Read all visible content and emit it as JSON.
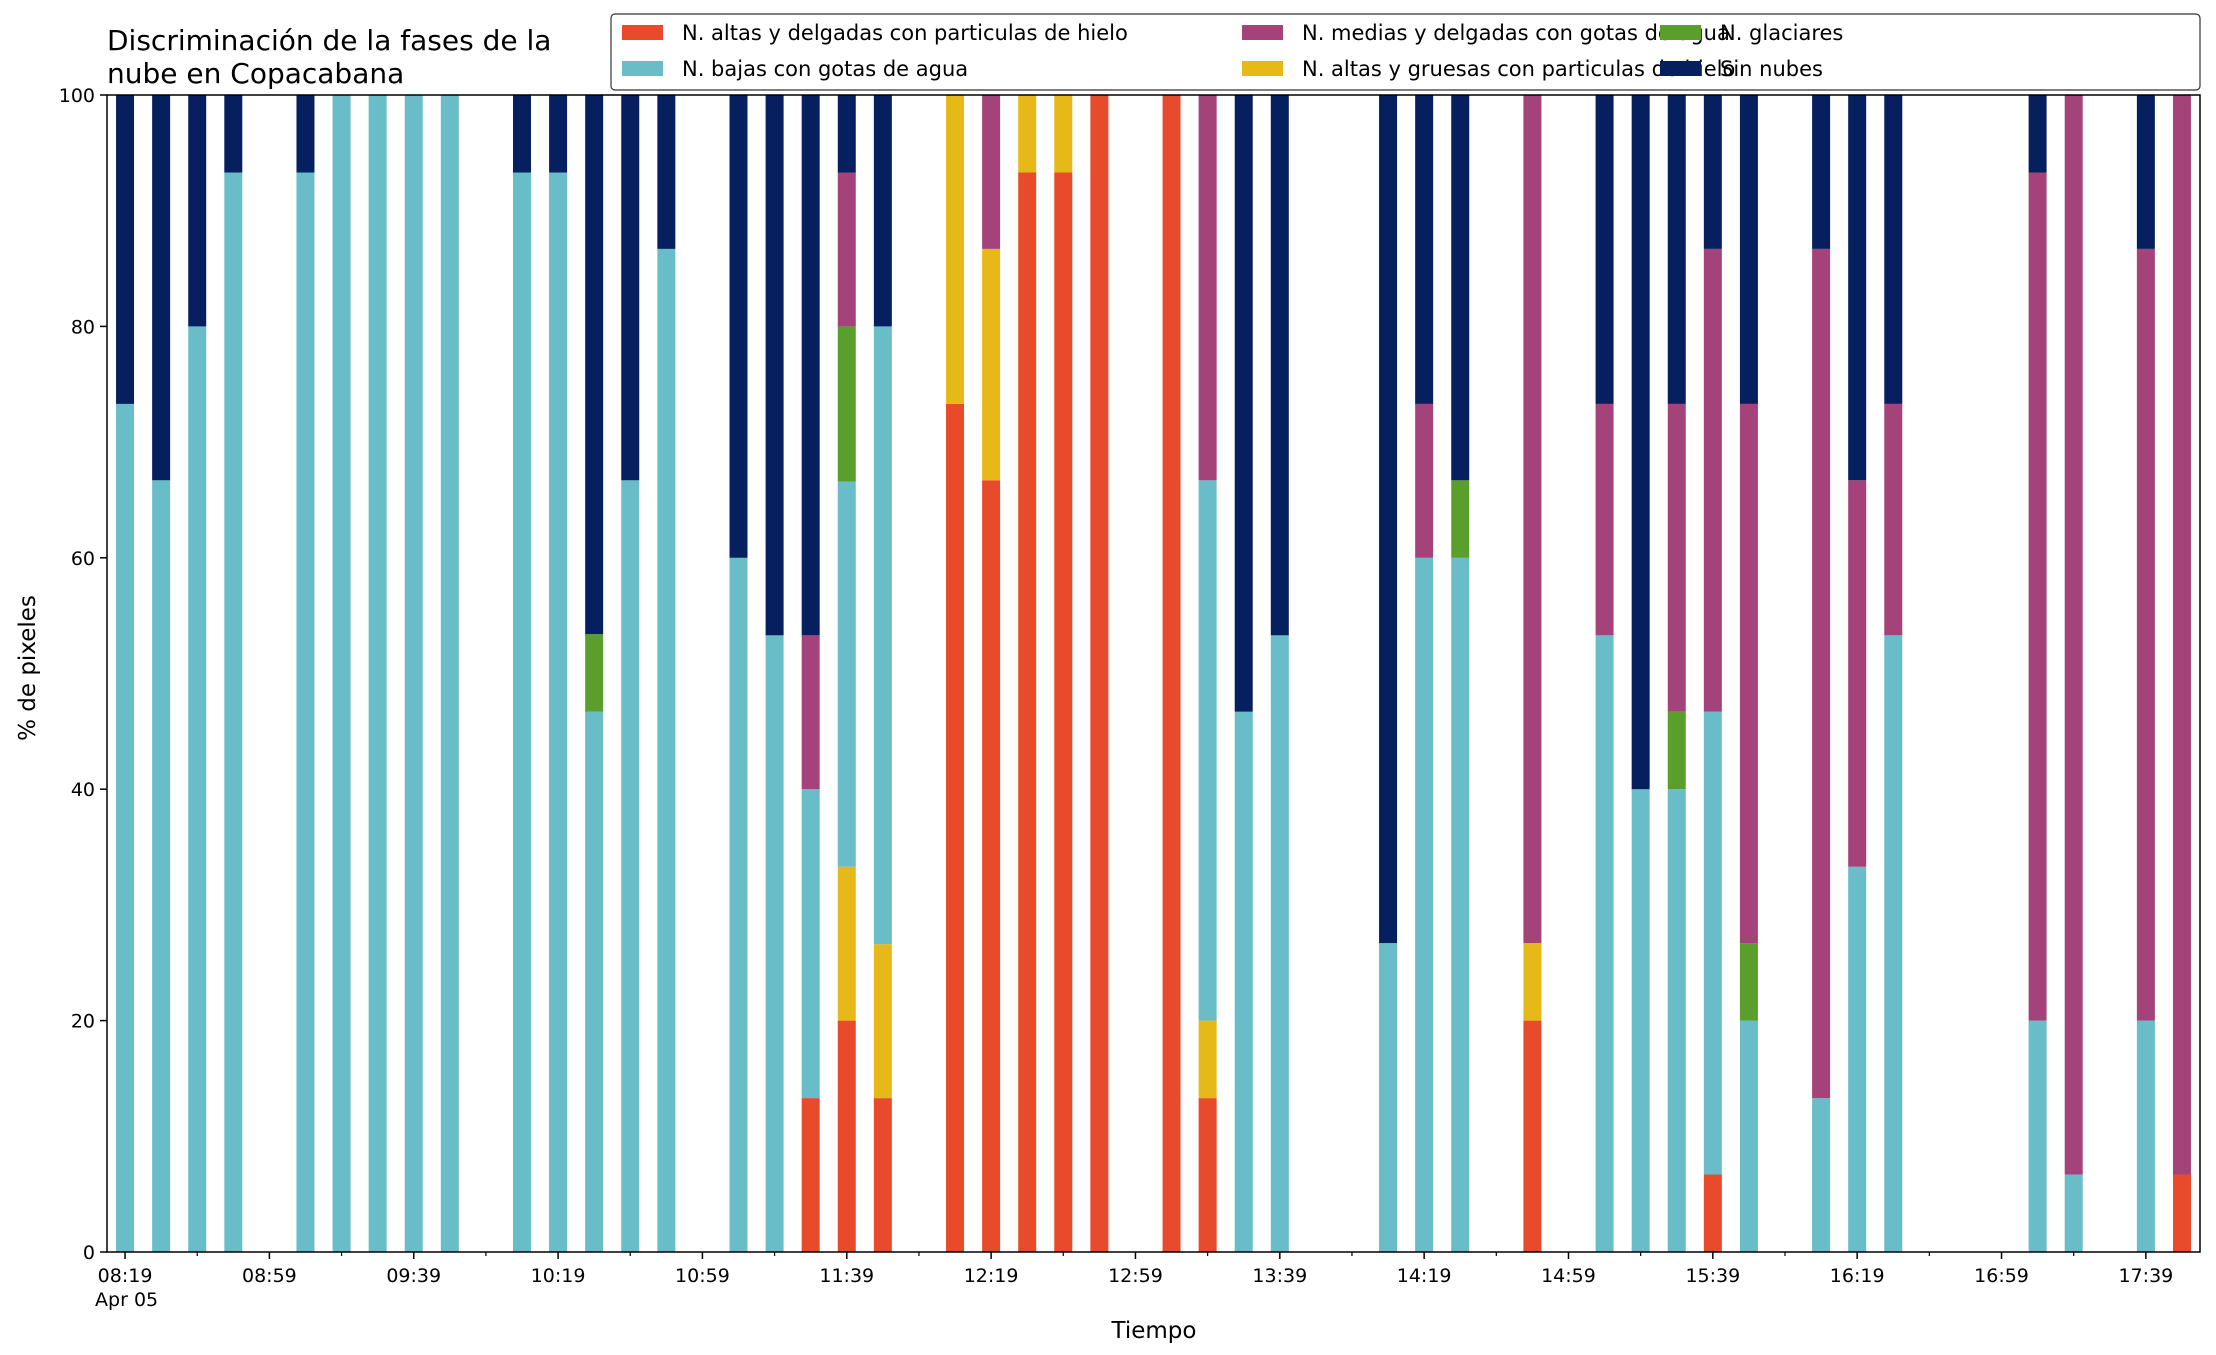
{
  "chart_data": {
    "type": "bar",
    "stacked": true,
    "title_lines": [
      "Discriminación de la fases de la",
      "nube en Copacabana"
    ],
    "xlabel": "Tiempo",
    "ylabel": "% de pixeles",
    "ylim": [
      0,
      100
    ],
    "yticks": [
      0,
      20,
      40,
      60,
      80,
      100
    ],
    "xlim": [
      "08:14",
      "17:54"
    ],
    "x_tick_labels": [
      "08:19",
      "08:59",
      "09:39",
      "10:19",
      "10:59",
      "11:39",
      "12:19",
      "12:59",
      "13:39",
      "14:19",
      "14:59",
      "15:39",
      "16:19",
      "16:59",
      "17:39"
    ],
    "x_date_label": "Apr 05",
    "x_minor_tick_step_minutes": 20,
    "legend_position": "top-right",
    "legend_columns": 3,
    "series": [
      {
        "name": "N. altas y delgadas con particulas de hielo",
        "color": "#e84b2c"
      },
      {
        "name": "N. altas y gruesas con particulas de hielo",
        "color": "#e6b818"
      },
      {
        "name": "N. bajas con gotas de agua",
        "color": "#68bdc9"
      },
      {
        "name": "N. glaciares",
        "color": "#5a9e2c"
      },
      {
        "name": "N. medias y delgadas con gotas de agua",
        "color": "#a4427a"
      },
      {
        "name": "Sin nubes",
        "color": "#06205f"
      }
    ],
    "legend_order": [
      0,
      2,
      4,
      1,
      3,
      5
    ],
    "x": [
      "08:19",
      "08:29",
      "08:39",
      "08:49",
      "09:09",
      "09:19",
      "09:29",
      "09:39",
      "09:49",
      "10:09",
      "10:19",
      "10:29",
      "10:39",
      "10:49",
      "11:09",
      "11:19",
      "11:29",
      "11:39",
      "11:49",
      "12:09",
      "12:19",
      "12:29",
      "12:39",
      "12:49",
      "13:09",
      "13:19",
      "13:29",
      "13:39",
      "14:09",
      "14:19",
      "14:29",
      "14:49",
      "15:09",
      "15:19",
      "15:29",
      "15:39",
      "15:49",
      "16:09",
      "16:19",
      "16:29",
      "17:09",
      "17:19",
      "17:39",
      "17:49"
    ],
    "values": [
      [
        0,
        0,
        73.3,
        0,
        0,
        26.7
      ],
      [
        0,
        0,
        66.7,
        0,
        0,
        33.3
      ],
      [
        0,
        0,
        80,
        0,
        0,
        20
      ],
      [
        0,
        0,
        93.3,
        0,
        0,
        6.7
      ],
      [
        0,
        0,
        93.3,
        0,
        0,
        6.7
      ],
      [
        0,
        0,
        100,
        0,
        0,
        0
      ],
      [
        0,
        0,
        100,
        0,
        0,
        0
      ],
      [
        0,
        0,
        100,
        0,
        0,
        0
      ],
      [
        0,
        0,
        100,
        0,
        0,
        0
      ],
      [
        0,
        0,
        93.3,
        0,
        0,
        6.7
      ],
      [
        0,
        0,
        93.3,
        0,
        0,
        6.7
      ],
      [
        0,
        0,
        46.7,
        6.7,
        0,
        46.6
      ],
      [
        0,
        0,
        66.7,
        0,
        0,
        33.3
      ],
      [
        0,
        0,
        86.7,
        0,
        0,
        13.3
      ],
      [
        0,
        0,
        60,
        0,
        0,
        40
      ],
      [
        0,
        0,
        53.3,
        0,
        0,
        46.7
      ],
      [
        13.3,
        0,
        26.7,
        0,
        13.3,
        46.7
      ],
      [
        20,
        13.3,
        33.3,
        13.4,
        13.3,
        6.7
      ],
      [
        13.3,
        13.3,
        53.4,
        0,
        0,
        20
      ],
      [
        73.3,
        26.7,
        0,
        0,
        0,
        0
      ],
      [
        66.7,
        20,
        0,
        0,
        13.3,
        0
      ],
      [
        93.3,
        6.7,
        0,
        0,
        0,
        0
      ],
      [
        93.3,
        6.7,
        0,
        0,
        0,
        0
      ],
      [
        100,
        0,
        0,
        0,
        0,
        0
      ],
      [
        100,
        0,
        0,
        0,
        0,
        0
      ],
      [
        13.3,
        6.7,
        46.7,
        0,
        33.3,
        0
      ],
      [
        0,
        0,
        46.7,
        0,
        0,
        53.3
      ],
      [
        0,
        0,
        53.3,
        0,
        0,
        46.7
      ],
      [
        0,
        0,
        26.7,
        0,
        0,
        73.3
      ],
      [
        0,
        0,
        60,
        0,
        13.3,
        26.7
      ],
      [
        0,
        0,
        60,
        6.7,
        0,
        33.3
      ],
      [
        20,
        6.7,
        0,
        0,
        73.3,
        0
      ],
      [
        0,
        0,
        53.3,
        0,
        20,
        26.7
      ],
      [
        0,
        0,
        40,
        0,
        0,
        60
      ],
      [
        0,
        0,
        40,
        6.7,
        26.6,
        26.7
      ],
      [
        6.7,
        0,
        40,
        0,
        40,
        13.3
      ],
      [
        0,
        0,
        20,
        6.7,
        46.6,
        26.7
      ],
      [
        0,
        0,
        13.3,
        0,
        73.4,
        13.3
      ],
      [
        0,
        0,
        33.3,
        0,
        33.4,
        33.3
      ],
      [
        0,
        0,
        53.3,
        0,
        20,
        26.7
      ],
      [
        0,
        0,
        20,
        0,
        73.3,
        6.7
      ],
      [
        0,
        0,
        6.7,
        0,
        93.3,
        0
      ],
      [
        0,
        0,
        20,
        0,
        66.7,
        13.3
      ],
      [
        6.7,
        0,
        0,
        0,
        93.3,
        0
      ]
    ]
  }
}
